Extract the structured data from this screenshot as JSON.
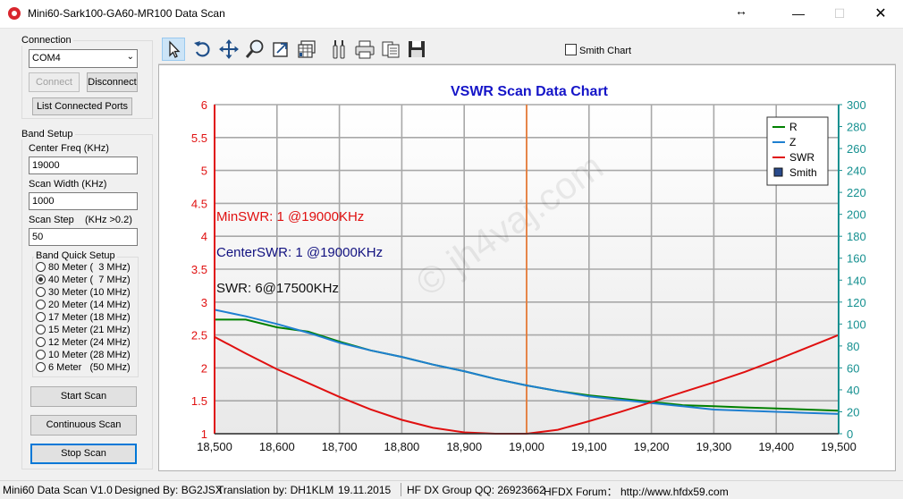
{
  "window": {
    "title": "Mini60-Sark100-GA60-MR100 Data Scan",
    "minimize_glyph": "—",
    "maximize_glyph": "☐",
    "close_glyph": "✕",
    "resize_glyph": "↔"
  },
  "connection": {
    "group_label": "Connection",
    "port": "COM4",
    "connect_label": "Connect",
    "disconnect_label": "Disconnect",
    "list_ports_label": "List Connected Ports"
  },
  "band_setup": {
    "group_label": "Band Setup",
    "center_freq_label": "Center Freq  (KHz)",
    "center_freq_value": "19000",
    "scan_width_label": "Scan Width   (KHz)",
    "scan_width_value": "1000",
    "scan_step_label": "Scan Step",
    "scan_step_hint": "(KHz >0.2)",
    "scan_step_value": "50",
    "quick_setup_label": "Band Quick Setup",
    "bands": [
      {
        "label": "80 Meter (  3 MHz)",
        "checked": false
      },
      {
        "label": "40 Meter (  7 MHz)",
        "checked": true
      },
      {
        "label": "30 Meter (10 MHz)",
        "checked": false
      },
      {
        "label": "20 Meter (14 MHz)",
        "checked": false
      },
      {
        "label": "17 Meter (18 MHz)",
        "checked": false
      },
      {
        "label": "15 Meter (21 MHz)",
        "checked": false
      },
      {
        "label": "12 Meter (24 MHz)",
        "checked": false
      },
      {
        "label": "10 Meter (28 MHz)",
        "checked": false
      },
      {
        "label": "6 Meter   (50 MHz)",
        "checked": false
      }
    ]
  },
  "actions": {
    "start_scan": "Start Scan",
    "continuous_scan": "Continuous Scan",
    "stop_scan": "Stop Scan"
  },
  "toolbar": {
    "smith_chart_label": "Smith Chart",
    "tools": [
      "pointer-icon",
      "undo-icon",
      "pan-icon",
      "zoom-icon",
      "export-icon",
      "data-table-icon",
      "settings-icon",
      "print-icon",
      "copy-icon",
      "save-icon"
    ]
  },
  "chart_data": {
    "type": "line",
    "title": "VSWR Scan Data Chart",
    "x_ticks": [
      "18,500",
      "18,600",
      "18,700",
      "18,800",
      "18,900",
      "19,000",
      "19,100",
      "19,200",
      "19,300",
      "19,400",
      "19,500"
    ],
    "y_left_ticks": [
      "1",
      "1.5",
      "2",
      "2.5",
      "3",
      "3.5",
      "4",
      "4.5",
      "5",
      "5.5",
      "6"
    ],
    "y_right_ticks": [
      "0",
      "20",
      "40",
      "60",
      "80",
      "100",
      "120",
      "140",
      "160",
      "180",
      "200",
      "220",
      "240",
      "260",
      "280",
      "300"
    ],
    "xlim": [
      18500,
      19500
    ],
    "ylim_left": [
      1,
      6
    ],
    "ylim_right": [
      0,
      300
    ],
    "cursor_x": 19000,
    "annotations": {
      "min_swr": "MinSWR: 1 @19000KHz",
      "center_swr": "CenterSWR: 1 @19000KHz",
      "swr": "SWR: 6@17500KHz"
    },
    "watermark": "© jh4vaj.com",
    "legend_position": "top-right",
    "legend": [
      {
        "name": "R",
        "color": "#008000",
        "marker": "line"
      },
      {
        "name": "Z",
        "color": "#1e7fd0",
        "marker": "line"
      },
      {
        "name": "SWR",
        "color": "#e01010",
        "marker": "line"
      },
      {
        "name": "Smith",
        "color": "#2a4b8c",
        "marker": "square"
      }
    ],
    "series": [
      {
        "name": "R",
        "axis": "right",
        "color": "#008000",
        "x": [
          18500,
          18550,
          18600,
          18650,
          18700,
          18750,
          18800,
          18850,
          18900,
          18950,
          19000,
          19050,
          19100,
          19150,
          19200,
          19250,
          19300,
          19350,
          19400,
          19450,
          19500
        ],
        "y": [
          104,
          104,
          97,
          93,
          84,
          76,
          70,
          63,
          57,
          50,
          44,
          39,
          35,
          32,
          29,
          26,
          25,
          24,
          23,
          22,
          21
        ]
      },
      {
        "name": "Z",
        "axis": "right",
        "color": "#1e7fd0",
        "x": [
          18500,
          18550,
          18600,
          18650,
          18700,
          18750,
          18800,
          18850,
          18900,
          18950,
          19000,
          19050,
          19100,
          19150,
          19200,
          19250,
          19300,
          19350,
          19400,
          19450,
          19500
        ],
        "y": [
          113,
          107,
          100,
          92,
          83,
          76,
          70,
          63,
          57,
          50,
          44,
          39,
          34,
          31,
          28,
          25,
          22,
          21,
          20,
          19,
          18
        ]
      },
      {
        "name": "SWR",
        "axis": "left",
        "color": "#e01010",
        "x": [
          18500,
          18550,
          18600,
          18650,
          18700,
          18750,
          18800,
          18850,
          18900,
          18950,
          19000,
          19050,
          19100,
          19150,
          19200,
          19250,
          19300,
          19350,
          19400,
          19450,
          19500
        ],
        "y": [
          2.47,
          2.22,
          1.98,
          1.77,
          1.56,
          1.37,
          1.21,
          1.09,
          1.02,
          1.0,
          1.0,
          1.06,
          1.19,
          1.33,
          1.48,
          1.63,
          1.78,
          1.94,
          2.12,
          2.31,
          2.5
        ]
      }
    ]
  },
  "status": {
    "version": "Mini60 Data Scan V1.0",
    "designer": "Designed By: BG2JSX",
    "translator": "Translation by: DH1KLM",
    "date": "19.11.2015",
    "qq": "HF DX Group QQ: 26923662",
    "forum": "HFDX Forum：  http://www.hfdx59.com"
  }
}
